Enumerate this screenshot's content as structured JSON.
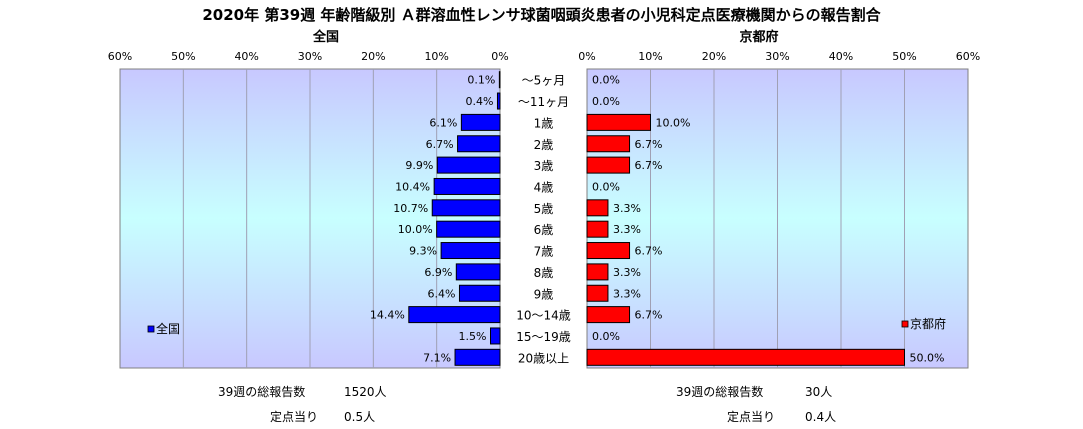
{
  "title": "2020年 第39週 年齢階級別 Ａ群溶血性レンサ球菌咽頭炎患者の小児科定点医療機関からの報告割合",
  "colors": {
    "national": "#0000ff",
    "kyoto": "#ff0000",
    "plot_top": "#c8c8ff",
    "plot_mid": "#c8ffff"
  },
  "chart_data": {
    "type": "bar",
    "orientation": "horizontal",
    "categories": [
      "～5ヶ月",
      "～11ヶ月",
      "1歳",
      "2歳",
      "3歳",
      "4歳",
      "5歳",
      "6歳",
      "7歳",
      "8歳",
      "9歳",
      "10～14歳",
      "15～19歳",
      "20歳以上"
    ],
    "panels": [
      {
        "title": "全国",
        "legend": "全国",
        "direction": "left",
        "xlim": [
          0,
          60
        ],
        "ticks": [
          "60%",
          "50%",
          "40%",
          "30%",
          "20%",
          "10%",
          "0%"
        ],
        "values": [
          0.1,
          0.4,
          6.1,
          6.7,
          9.9,
          10.4,
          10.7,
          10.0,
          9.3,
          6.9,
          6.4,
          14.4,
          1.5,
          7.1
        ],
        "labels": [
          "0.1%",
          "0.4%",
          "6.1%",
          "6.7%",
          "9.9%",
          "10.4%",
          "10.7%",
          "10.0%",
          "9.3%",
          "6.9%",
          "6.4%",
          "14.4%",
          "1.5%",
          "7.1%"
        ]
      },
      {
        "title": "京都府",
        "legend": "京都府",
        "direction": "right",
        "xlim": [
          0,
          60
        ],
        "ticks": [
          "0%",
          "10%",
          "20%",
          "30%",
          "40%",
          "50%",
          "60%"
        ],
        "values": [
          0.0,
          0.0,
          10.0,
          6.7,
          6.7,
          0.0,
          3.3,
          3.3,
          6.7,
          3.3,
          3.3,
          6.7,
          0.0,
          50.0
        ],
        "labels": [
          "0.0%",
          "0.0%",
          "10.0%",
          "6.7%",
          "6.7%",
          "0.0%",
          "3.3%",
          "3.3%",
          "6.7%",
          "3.3%",
          "3.3%",
          "6.7%",
          "0.0%",
          "50.0%"
        ]
      }
    ]
  },
  "footer": {
    "national_total_label": "39週の総報告数",
    "national_total_value": "1520人",
    "national_per_label": "定点当り",
    "national_per_value": "0.5人",
    "kyoto_total_label": "39週の総報告数",
    "kyoto_total_value": "30人",
    "kyoto_per_label": "定点当り",
    "kyoto_per_value": "0.4人"
  }
}
